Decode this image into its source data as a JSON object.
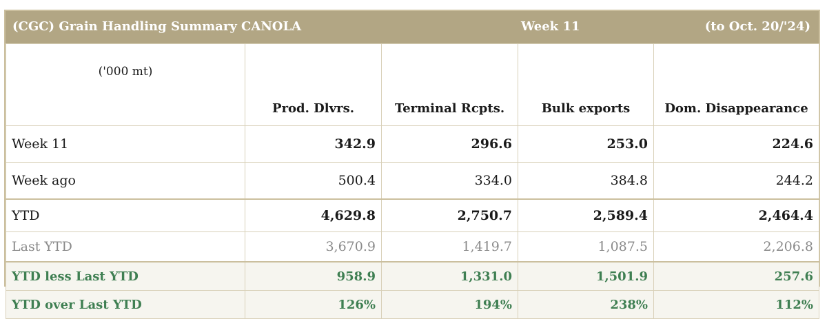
{
  "header": {
    "title": "(CGC) Grain Handling Summary CANOLA",
    "week": "Week 11",
    "date_range": "(to Oct. 20/'24)"
  },
  "table": {
    "unit": "('000 mt)",
    "columns": [
      "Prod. Dlvrs.",
      "Terminal Rcpts.",
      "Bulk exports",
      "Dom. Disappearance"
    ],
    "rows": [
      {
        "label": "Week 11",
        "values": [
          "342.9",
          "296.6",
          "253.0",
          "224.6"
        ]
      },
      {
        "label": "Week ago",
        "values": [
          "500.4",
          "334.0",
          "384.8",
          "244.2"
        ]
      },
      {
        "label": "YTD",
        "values": [
          "4,629.8",
          "2,750.7",
          "2,589.4",
          "2,464.4"
        ]
      },
      {
        "label": "Last YTD",
        "values": [
          "3,670.9",
          "1,419.7",
          "1,087.5",
          "2,206.8"
        ]
      },
      {
        "label": "YTD less Last YTD",
        "values": [
          "958.9",
          "1,331.0",
          "1,501.9",
          "257.6"
        ]
      },
      {
        "label": "YTD over Last YTD",
        "values": [
          "126%",
          "194%",
          "238%",
          "112%"
        ]
      }
    ]
  },
  "colors": {
    "header_bg": "#b2a684",
    "green_text": "#3f7f52",
    "muted_text": "#8a8a8a"
  }
}
